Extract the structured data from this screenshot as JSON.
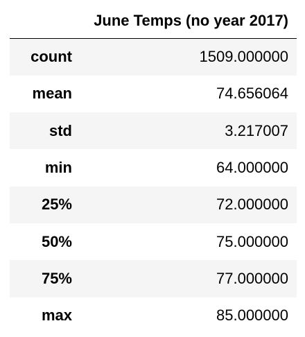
{
  "table": {
    "column_header": "June Temps (no year 2017)",
    "rows": [
      {
        "label": "count",
        "value": "1509.000000"
      },
      {
        "label": "mean",
        "value": "74.656064"
      },
      {
        "label": "std",
        "value": "3.217007"
      },
      {
        "label": "min",
        "value": "64.000000"
      },
      {
        "label": "25%",
        "value": "72.000000"
      },
      {
        "label": "50%",
        "value": "75.000000"
      },
      {
        "label": "75%",
        "value": "77.000000"
      },
      {
        "label": "max",
        "value": "85.000000"
      }
    ]
  }
}
